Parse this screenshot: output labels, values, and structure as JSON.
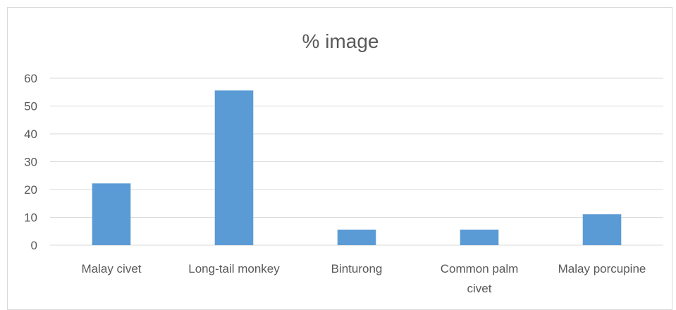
{
  "chart_data": {
    "type": "bar",
    "title": "% image",
    "xlabel": "",
    "ylabel": "",
    "categories": [
      [
        "Malay civet"
      ],
      [
        "Long-tail monkey"
      ],
      [
        "Binturong"
      ],
      [
        "Common palm",
        "civet"
      ],
      [
        "Malay porcupine"
      ]
    ],
    "values": [
      22.2,
      55.6,
      5.6,
      5.6,
      11.1
    ],
    "ylim": [
      0,
      60
    ],
    "yticks": [
      "0",
      "10",
      "20",
      "30",
      "40",
      "50",
      "60"
    ],
    "grid": true,
    "legend": "none",
    "colors": {
      "bar": "#5b9bd5",
      "grid": "#d9d9d9",
      "text": "#595959"
    }
  }
}
